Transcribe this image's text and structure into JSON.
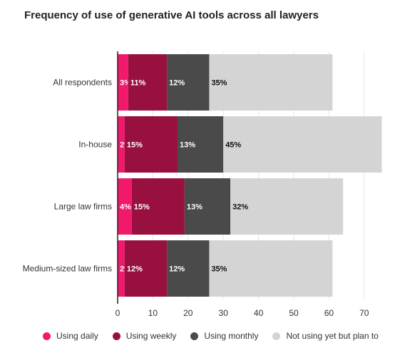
{
  "title": "Frequency of use of generative AI tools across all lawyers",
  "chart_data": {
    "type": "bar",
    "orientation": "horizontal",
    "stacked": true,
    "title": "Frequency of use of generative AI tools across all lawyers",
    "categories": [
      "All respondents",
      "In-house",
      "Large law firms",
      "Medium-sized law firms"
    ],
    "series": [
      {
        "name": "Using daily",
        "color": "#f0196c",
        "values": [
          3,
          2,
          4,
          2
        ],
        "labels": [
          "3%",
          "2%",
          "4%",
          "2%"
        ]
      },
      {
        "name": "Using weekly",
        "color": "#98103f",
        "values": [
          11,
          15,
          15,
          12
        ],
        "labels": [
          "11%",
          "15%",
          "15%",
          "12%"
        ]
      },
      {
        "name": "Using monthly",
        "color": "#4a4a4a",
        "values": [
          12,
          13,
          13,
          12
        ],
        "labels": [
          "12%",
          "13%",
          "13%",
          "12%"
        ]
      },
      {
        "name": "Not using yet but plan to",
        "color": "#d4d4d4",
        "values": [
          35,
          45,
          32,
          35
        ],
        "labels": [
          "35%",
          "45%",
          "32%",
          "35%"
        ]
      }
    ],
    "xlim": [
      0,
      75
    ],
    "xticks": [
      0,
      10,
      20,
      30,
      40,
      50,
      60,
      70
    ],
    "grid": true,
    "legend_position": "bottom"
  }
}
